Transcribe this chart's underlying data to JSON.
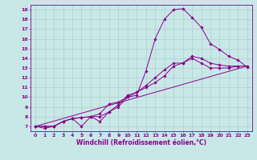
{
  "title": "",
  "xlabel": "Windchill (Refroidissement éolien,°C)",
  "bg_color": "#c8e8e8",
  "line_color": "#8b008b",
  "xlim": [
    -0.5,
    23.5
  ],
  "ylim": [
    6.5,
    19.5
  ],
  "xticks": [
    0,
    1,
    2,
    3,
    4,
    5,
    6,
    7,
    8,
    9,
    10,
    11,
    12,
    13,
    14,
    15,
    16,
    17,
    18,
    19,
    20,
    21,
    22,
    23
  ],
  "yticks": [
    7,
    8,
    9,
    10,
    11,
    12,
    13,
    14,
    15,
    16,
    17,
    18,
    19
  ],
  "grid_color": "#a8c8c8",
  "lines": [
    {
      "x": [
        0,
        1,
        2,
        3,
        4,
        5,
        6,
        7,
        8,
        9,
        10,
        11,
        12,
        13,
        14,
        15,
        16,
        17,
        18,
        19,
        20,
        21,
        22,
        23
      ],
      "y": [
        7,
        6.8,
        7.0,
        7.5,
        7.8,
        7.0,
        8.0,
        8.3,
        9.3,
        9.5,
        10.0,
        10.2,
        12.7,
        16.0,
        18.0,
        19.0,
        19.1,
        18.2,
        17.2,
        15.5,
        14.9,
        14.2,
        13.8,
        13.1
      ],
      "marker": true
    },
    {
      "x": [
        0,
        1,
        2,
        3,
        4,
        5,
        6,
        7,
        8,
        9,
        10,
        11,
        12,
        13,
        14,
        15,
        16,
        17,
        18,
        19,
        20,
        21,
        22,
        23
      ],
      "y": [
        7,
        7.0,
        7.0,
        7.5,
        7.8,
        7.9,
        8.0,
        7.5,
        8.5,
        9.0,
        10.0,
        10.5,
        11.0,
        11.5,
        12.2,
        13.2,
        13.5,
        14.0,
        13.5,
        13.0,
        13.0,
        13.0,
        13.2,
        13.2
      ],
      "marker": true
    },
    {
      "x": [
        0,
        1,
        2,
        3,
        4,
        5,
        6,
        7,
        8,
        9,
        10,
        11,
        12,
        13,
        14,
        15,
        16,
        17,
        18,
        19,
        20,
        21,
        22,
        23
      ],
      "y": [
        7,
        7.0,
        7.0,
        7.5,
        7.8,
        7.9,
        8.0,
        8.0,
        8.5,
        9.2,
        10.2,
        10.5,
        11.2,
        12.0,
        12.8,
        13.5,
        13.5,
        14.2,
        14.0,
        13.5,
        13.3,
        13.2,
        13.2,
        13.2
      ],
      "marker": true
    },
    {
      "x": [
        0,
        23
      ],
      "y": [
        7,
        13.2
      ],
      "marker": false
    }
  ],
  "tick_fontsize": 4.5,
  "xlabel_fontsize": 5.5
}
